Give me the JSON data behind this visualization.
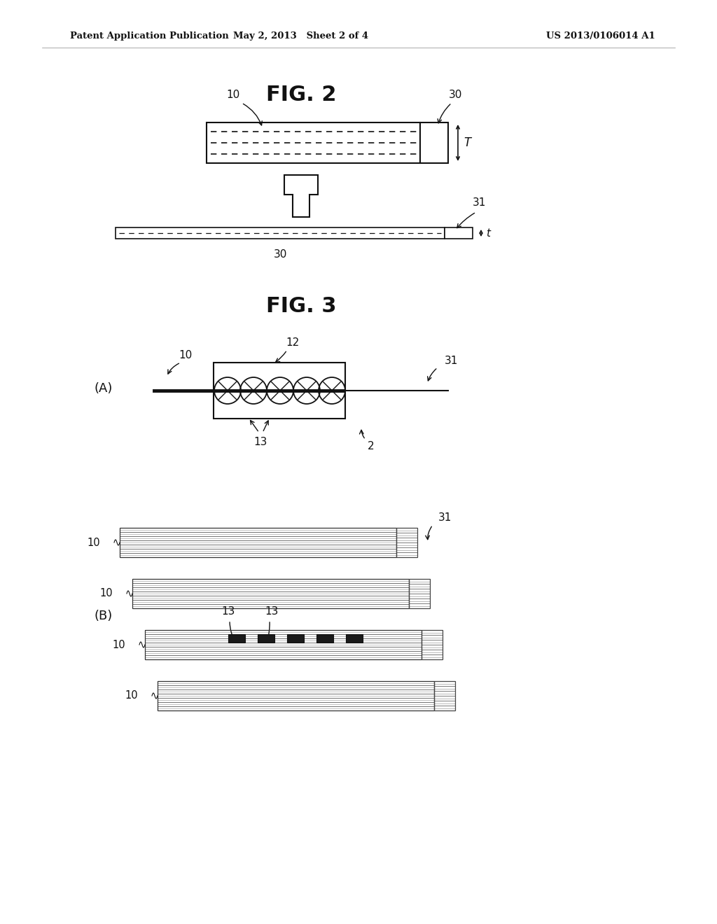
{
  "bg_color": "#ffffff",
  "header_left": "Patent Application Publication",
  "header_mid": "May 2, 2013   Sheet 2 of 4",
  "header_right": "US 2013/0106014 A1",
  "fig2_title": "FIG. 2",
  "fig3_title": "FIG. 3",
  "label_color": "#111111"
}
